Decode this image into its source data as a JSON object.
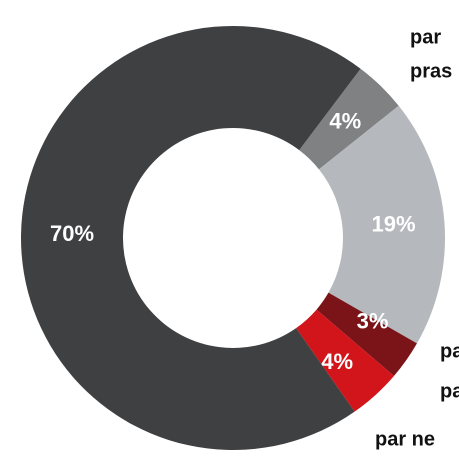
{
  "chart_data": {
    "type": "donut",
    "values": [
      4,
      19,
      3,
      4,
      70
    ],
    "value_labels": [
      "4%",
      "19%",
      "3%",
      "4%",
      "70%"
    ],
    "colors": [
      "#7f8183",
      "#b5b8bc",
      "#7a1419",
      "#d2141b",
      "#3e4042"
    ],
    "annotations": [
      "par",
      "pras",
      "pa",
      "pa",
      "par ne"
    ]
  }
}
